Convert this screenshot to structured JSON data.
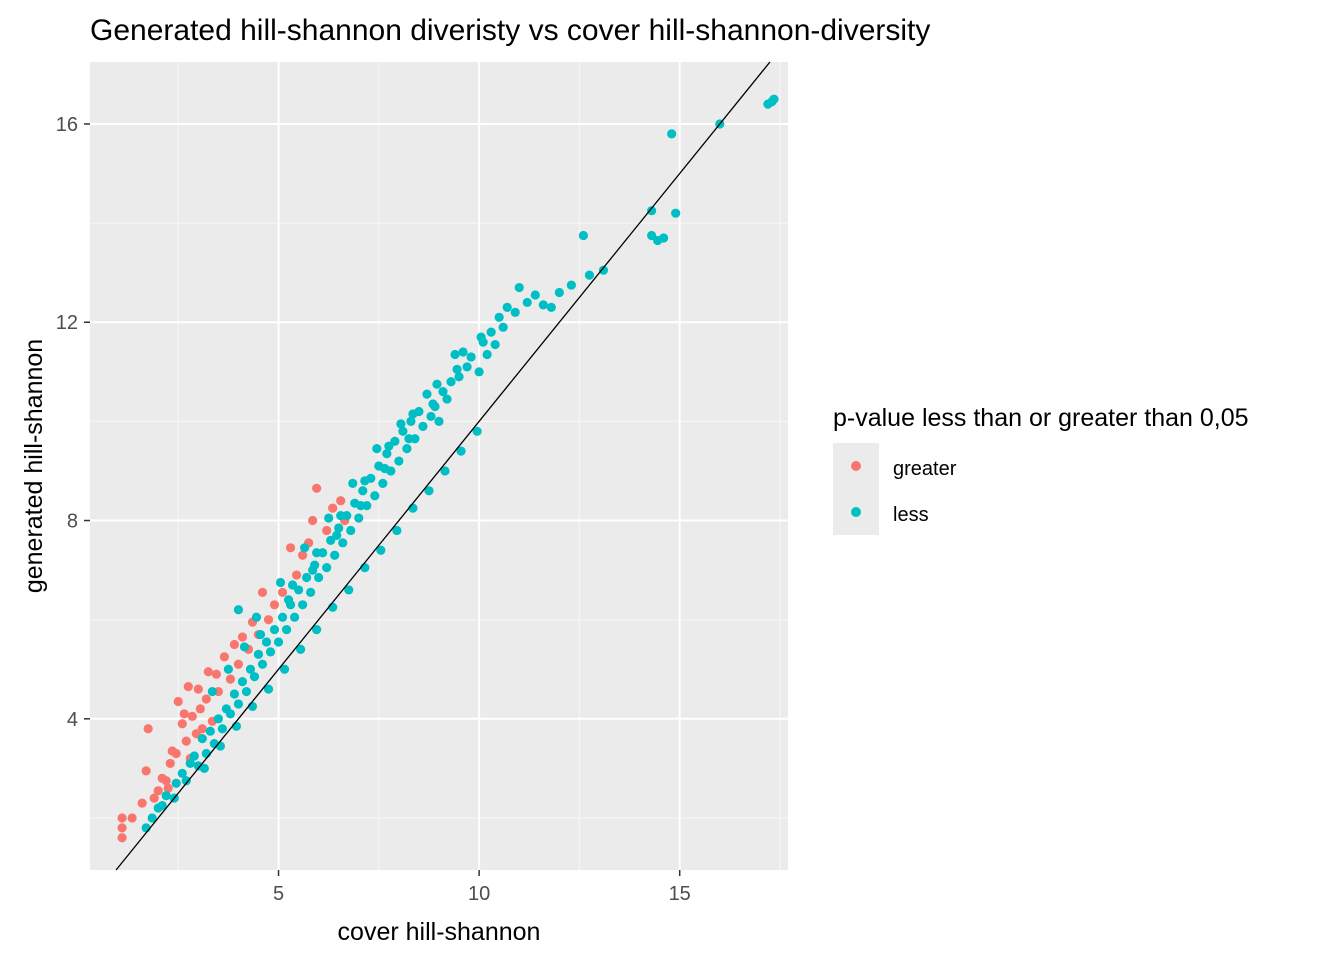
{
  "chart_data": {
    "type": "scatter",
    "title": "Generated hill-shannon diveristy vs cover hill-shannon-diversity",
    "xlabel": "cover hill-shannon",
    "ylabel": "generated hill-shannon",
    "xlim": [
      0.3,
      17.7
    ],
    "ylim": [
      0.95,
      17.25
    ],
    "x_ticks": [
      5,
      10,
      15
    ],
    "y_ticks": [
      4,
      8,
      12,
      16
    ],
    "grid": true,
    "reference_line": {
      "type": "identity",
      "slope": 1,
      "intercept": 0,
      "color": "#000000"
    },
    "legend": {
      "title": "p-value less than or greater than 0,05",
      "position": "right",
      "entries": [
        {
          "label": "greater",
          "color": "#F8766D"
        },
        {
          "label": "less",
          "color": "#00BFC4"
        }
      ]
    },
    "series": [
      {
        "name": "greater",
        "color": "#F8766D",
        "points": [
          [
            1.1,
            1.6
          ],
          [
            1.1,
            1.8
          ],
          [
            1.1,
            2.0
          ],
          [
            1.35,
            2.0
          ],
          [
            1.6,
            2.3
          ],
          [
            1.7,
            2.95
          ],
          [
            1.75,
            3.8
          ],
          [
            1.9,
            2.4
          ],
          [
            2.0,
            2.55
          ],
          [
            2.1,
            2.8
          ],
          [
            2.2,
            2.75
          ],
          [
            2.25,
            2.6
          ],
          [
            2.3,
            3.1
          ],
          [
            2.35,
            3.35
          ],
          [
            2.45,
            3.3
          ],
          [
            2.5,
            4.35
          ],
          [
            2.6,
            3.9
          ],
          [
            2.65,
            4.1
          ],
          [
            2.7,
            3.55
          ],
          [
            2.75,
            4.65
          ],
          [
            2.8,
            3.2
          ],
          [
            2.85,
            4.05
          ],
          [
            2.95,
            3.7
          ],
          [
            3.0,
            4.6
          ],
          [
            3.05,
            4.2
          ],
          [
            3.1,
            3.8
          ],
          [
            3.2,
            4.4
          ],
          [
            3.25,
            4.95
          ],
          [
            3.35,
            3.95
          ],
          [
            3.45,
            4.9
          ],
          [
            3.5,
            4.55
          ],
          [
            3.65,
            5.25
          ],
          [
            3.8,
            4.8
          ],
          [
            3.9,
            5.5
          ],
          [
            4.0,
            5.1
          ],
          [
            4.1,
            5.65
          ],
          [
            4.25,
            5.4
          ],
          [
            4.35,
            5.95
          ],
          [
            4.5,
            5.7
          ],
          [
            4.6,
            6.55
          ],
          [
            4.75,
            6.0
          ],
          [
            4.9,
            6.3
          ],
          [
            5.1,
            6.55
          ],
          [
            5.3,
            7.45
          ],
          [
            5.45,
            6.9
          ],
          [
            5.6,
            7.3
          ],
          [
            5.75,
            7.55
          ],
          [
            5.85,
            8.0
          ],
          [
            5.95,
            8.65
          ],
          [
            6.2,
            7.8
          ],
          [
            6.35,
            8.25
          ],
          [
            6.55,
            8.4
          ],
          [
            6.65,
            8.0
          ]
        ]
      },
      {
        "name": "less",
        "color": "#00BFC4",
        "points": [
          [
            1.7,
            1.8
          ],
          [
            1.85,
            2.0
          ],
          [
            2.0,
            2.2
          ],
          [
            2.1,
            2.25
          ],
          [
            2.2,
            2.45
          ],
          [
            2.4,
            2.4
          ],
          [
            2.45,
            2.7
          ],
          [
            2.6,
            2.9
          ],
          [
            2.7,
            2.75
          ],
          [
            2.8,
            3.1
          ],
          [
            2.9,
            3.25
          ],
          [
            3.0,
            3.05
          ],
          [
            3.1,
            3.6
          ],
          [
            3.2,
            3.3
          ],
          [
            3.3,
            3.75
          ],
          [
            3.4,
            3.5
          ],
          [
            3.5,
            4.0
          ],
          [
            3.6,
            3.8
          ],
          [
            3.7,
            4.2
          ],
          [
            3.8,
            4.1
          ],
          [
            3.9,
            4.5
          ],
          [
            4.0,
            4.3
          ],
          [
            4.0,
            6.2
          ],
          [
            4.1,
            4.75
          ],
          [
            4.2,
            4.55
          ],
          [
            4.3,
            5.0
          ],
          [
            4.4,
            4.85
          ],
          [
            4.5,
            5.3
          ],
          [
            4.6,
            5.1
          ],
          [
            4.7,
            5.55
          ],
          [
            4.8,
            5.35
          ],
          [
            4.9,
            5.8
          ],
          [
            5.0,
            5.55
          ],
          [
            5.1,
            6.05
          ],
          [
            5.2,
            5.8
          ],
          [
            5.3,
            6.3
          ],
          [
            5.4,
            6.05
          ],
          [
            5.5,
            6.6
          ],
          [
            5.6,
            6.3
          ],
          [
            5.7,
            6.85
          ],
          [
            5.8,
            6.55
          ],
          [
            5.9,
            7.1
          ],
          [
            6.0,
            6.85
          ],
          [
            6.1,
            7.35
          ],
          [
            6.2,
            7.05
          ],
          [
            6.3,
            7.6
          ],
          [
            6.4,
            7.3
          ],
          [
            6.5,
            7.85
          ],
          [
            6.6,
            7.55
          ],
          [
            6.7,
            8.1
          ],
          [
            6.8,
            7.8
          ],
          [
            6.9,
            8.35
          ],
          [
            7.0,
            8.05
          ],
          [
            7.1,
            8.6
          ],
          [
            7.2,
            8.3
          ],
          [
            7.3,
            8.85
          ],
          [
            7.4,
            8.5
          ],
          [
            7.5,
            9.1
          ],
          [
            7.6,
            8.75
          ],
          [
            7.7,
            9.35
          ],
          [
            7.8,
            9.0
          ],
          [
            7.9,
            9.6
          ],
          [
            8.0,
            9.2
          ],
          [
            8.1,
            9.8
          ],
          [
            8.2,
            9.45
          ],
          [
            8.3,
            10.0
          ],
          [
            8.4,
            9.65
          ],
          [
            8.5,
            10.2
          ],
          [
            8.6,
            9.9
          ],
          [
            8.7,
            10.55
          ],
          [
            8.8,
            10.1
          ],
          [
            8.9,
            10.3
          ],
          [
            9.0,
            10.0
          ],
          [
            9.1,
            10.6
          ],
          [
            9.2,
            10.45
          ],
          [
            9.3,
            10.8
          ],
          [
            9.4,
            11.35
          ],
          [
            9.5,
            10.9
          ],
          [
            9.6,
            11.4
          ],
          [
            9.7,
            11.1
          ],
          [
            9.8,
            11.3
          ],
          [
            10.0,
            11.0
          ],
          [
            10.1,
            11.6
          ],
          [
            10.2,
            11.35
          ],
          [
            10.3,
            11.8
          ],
          [
            10.4,
            11.55
          ],
          [
            10.5,
            12.1
          ],
          [
            10.6,
            11.9
          ],
          [
            10.7,
            12.3
          ],
          [
            10.9,
            12.2
          ],
          [
            11.0,
            12.7
          ],
          [
            11.2,
            12.4
          ],
          [
            11.4,
            12.55
          ],
          [
            11.6,
            12.35
          ],
          [
            11.8,
            12.3
          ],
          [
            12.0,
            12.6
          ],
          [
            12.3,
            12.75
          ],
          [
            12.6,
            13.75
          ],
          [
            12.75,
            12.95
          ],
          [
            13.1,
            13.05
          ],
          [
            14.3,
            14.25
          ],
          [
            14.3,
            13.75
          ],
          [
            14.45,
            13.65
          ],
          [
            14.6,
            13.7
          ],
          [
            14.8,
            15.8
          ],
          [
            14.9,
            14.2
          ],
          [
            16.0,
            16.0
          ],
          [
            17.2,
            16.4
          ],
          [
            17.3,
            16.45
          ],
          [
            17.35,
            16.5
          ],
          [
            3.15,
            3.0
          ],
          [
            3.55,
            3.45
          ],
          [
            3.95,
            3.85
          ],
          [
            4.35,
            4.25
          ],
          [
            4.75,
            4.6
          ],
          [
            5.15,
            5.0
          ],
          [
            5.55,
            5.4
          ],
          [
            5.95,
            5.8
          ],
          [
            6.35,
            6.25
          ],
          [
            6.75,
            6.6
          ],
          [
            7.15,
            7.05
          ],
          [
            7.55,
            7.4
          ],
          [
            7.95,
            7.8
          ],
          [
            8.35,
            8.25
          ],
          [
            8.75,
            8.6
          ],
          [
            9.15,
            9.0
          ],
          [
            9.55,
            9.4
          ],
          [
            9.95,
            9.8
          ],
          [
            4.45,
            6.05
          ],
          [
            5.05,
            6.75
          ],
          [
            5.65,
            7.45
          ],
          [
            6.25,
            8.05
          ],
          [
            6.85,
            8.75
          ],
          [
            7.45,
            9.45
          ],
          [
            8.05,
            9.95
          ],
          [
            3.35,
            4.55
          ],
          [
            3.75,
            5.0
          ],
          [
            4.15,
            5.45
          ],
          [
            5.35,
            6.7
          ],
          [
            5.95,
            7.35
          ],
          [
            6.55,
            8.1
          ],
          [
            7.15,
            8.8
          ],
          [
            7.75,
            9.5
          ],
          [
            8.35,
            10.15
          ],
          [
            8.95,
            10.75
          ],
          [
            4.55,
            5.7
          ],
          [
            5.25,
            6.4
          ],
          [
            5.85,
            7.0
          ],
          [
            6.45,
            7.7
          ],
          [
            7.05,
            8.3
          ],
          [
            7.65,
            9.05
          ],
          [
            8.25,
            9.65
          ],
          [
            8.85,
            10.35
          ],
          [
            9.45,
            11.05
          ],
          [
            10.05,
            11.7
          ]
        ]
      }
    ]
  }
}
